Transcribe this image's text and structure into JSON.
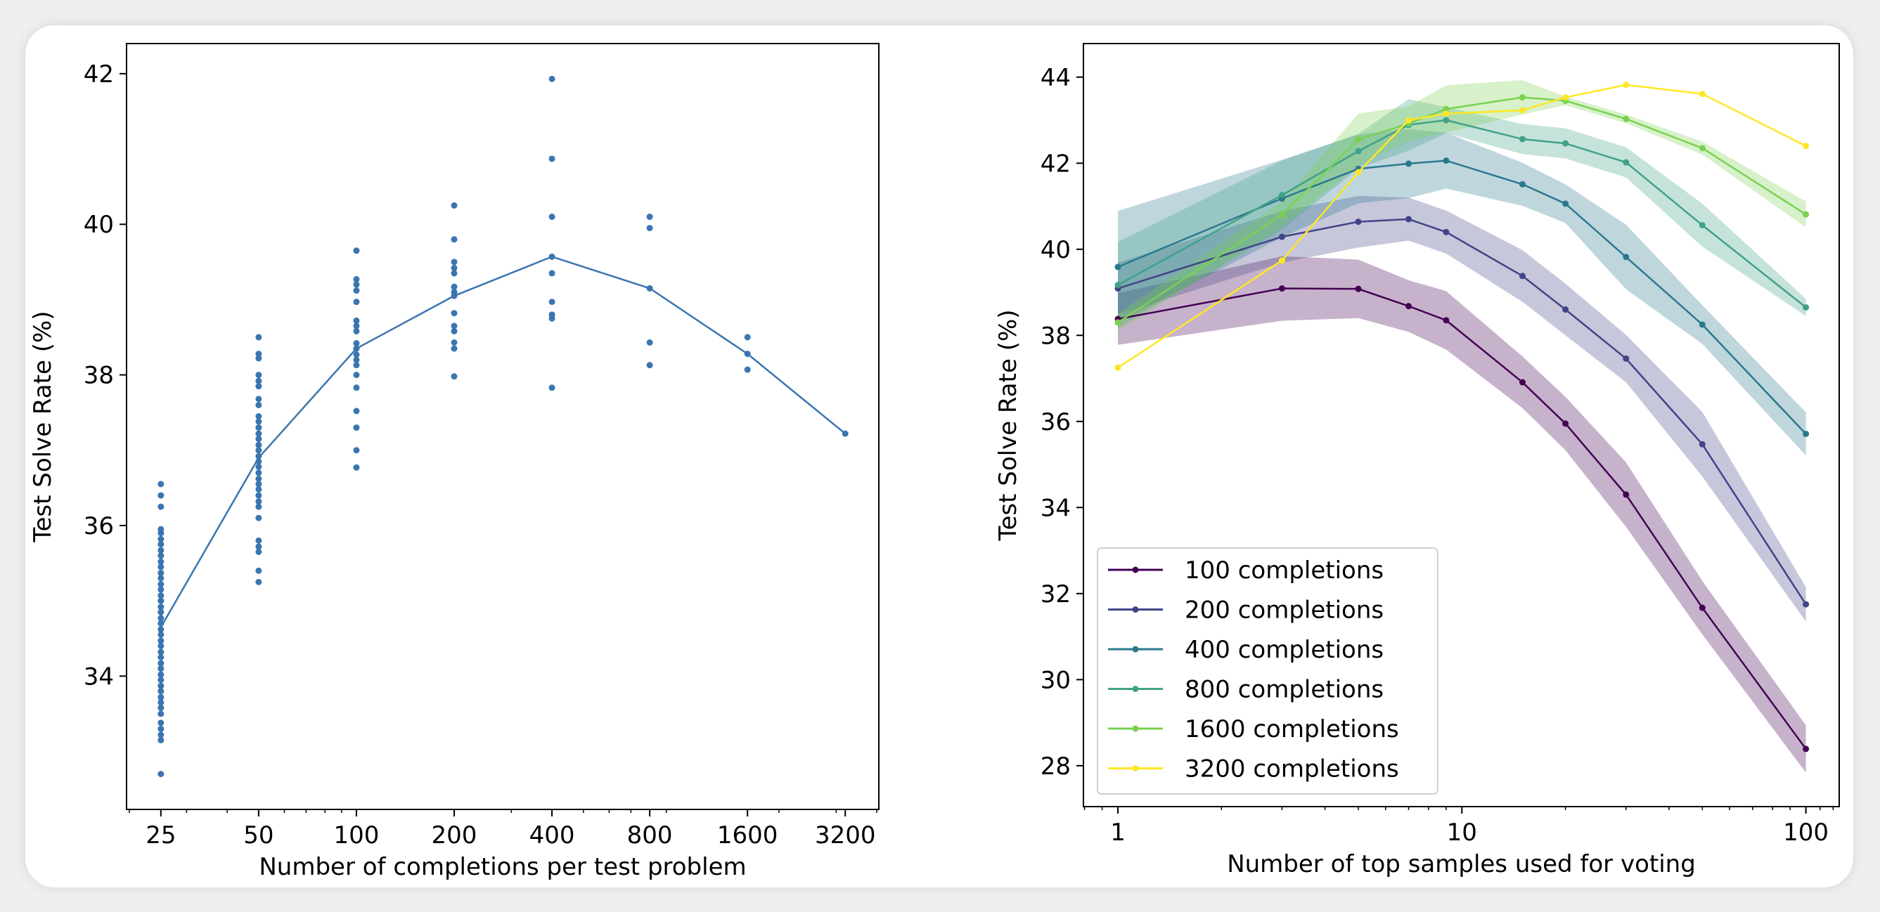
{
  "chart_data": [
    {
      "type": "scatter",
      "title": "",
      "xlabel": "Number of completions per test problem",
      "ylabel": "Test Solve Rate (%)",
      "xscale": "log2",
      "xlim": [
        19.6,
        4060
      ],
      "ylim": [
        32.23,
        42.4
      ],
      "xticks": [
        25,
        50,
        100,
        200,
        400,
        800,
        1600,
        3200
      ],
      "xtick_labels": [
        "25",
        "50",
        "100",
        "200",
        "400",
        "800",
        "1600",
        "3200"
      ],
      "yticks": [
        34,
        36,
        38,
        40,
        42
      ],
      "ytick_labels": [
        "34",
        "36",
        "38",
        "40",
        "42"
      ],
      "color": "#3a75b0",
      "points": {
        "25": [
          32.7,
          33.15,
          33.22,
          33.3,
          33.38,
          33.5,
          33.58,
          33.65,
          33.72,
          33.8,
          33.87,
          33.95,
          34.02,
          34.1,
          34.17,
          34.25,
          34.32,
          34.4,
          34.47,
          34.55,
          34.62,
          34.7,
          34.77,
          34.85,
          34.92,
          35.0,
          35.07,
          35.15,
          35.22,
          35.3,
          35.37,
          35.45,
          35.52,
          35.6,
          35.67,
          35.75,
          35.82,
          35.9,
          35.95,
          36.25,
          36.4,
          36.55
        ],
        "50": [
          35.25,
          35.4,
          35.65,
          35.72,
          35.8,
          36.1,
          36.25,
          36.32,
          36.4,
          36.48,
          36.55,
          36.62,
          36.7,
          36.78,
          36.85,
          36.92,
          37.0,
          37.07,
          37.15,
          37.22,
          37.3,
          37.38,
          37.45,
          37.6,
          37.68,
          37.85,
          37.92,
          38.0,
          38.22,
          38.28,
          38.5
        ],
        "100": [
          36.77,
          37.0,
          37.3,
          37.52,
          37.83,
          38.0,
          38.13,
          38.2,
          38.27,
          38.35,
          38.42,
          38.58,
          38.65,
          38.72,
          38.97,
          39.12,
          39.2,
          39.27,
          39.65
        ],
        "200": [
          37.98,
          38.35,
          38.43,
          38.58,
          38.65,
          38.82,
          39.05,
          39.1,
          39.17,
          39.35,
          39.42,
          39.5,
          39.8,
          40.25
        ],
        "400": [
          41.93,
          40.87,
          40.1,
          39.57,
          39.35,
          38.97,
          38.8,
          38.75,
          37.83
        ],
        "800": [
          40.1,
          39.95,
          39.15,
          38.43,
          38.13
        ],
        "1600": [
          38.5,
          38.28,
          38.07
        ],
        "3200": [
          37.22
        ]
      },
      "mean_line": {
        "x": [
          25,
          50,
          100,
          200,
          400,
          800,
          1600,
          3200
        ],
        "y": [
          34.65,
          36.9,
          38.35,
          39.05,
          39.57,
          39.15,
          38.28,
          37.22
        ]
      }
    },
    {
      "type": "line",
      "title": "",
      "xlabel": "Number of top samples used for voting",
      "ylabel": "Test Solve Rate (%)",
      "xscale": "log10",
      "xlim": [
        0.794,
        125
      ],
      "ylim": [
        27.05,
        44.78
      ],
      "xticks": [
        1,
        10,
        100
      ],
      "xtick_labels": [
        "1",
        "10",
        "100"
      ],
      "yticks": [
        28,
        30,
        32,
        34,
        36,
        38,
        40,
        42,
        44
      ],
      "ytick_labels": [
        "28",
        "30",
        "32",
        "34",
        "36",
        "38",
        "40",
        "42",
        "44"
      ],
      "legend_position": "lower-left",
      "x": [
        1,
        3,
        5,
        7,
        9,
        15,
        20,
        30,
        50,
        100
      ],
      "series": [
        {
          "name": "100 completions",
          "color": "#440154",
          "values": [
            38.38,
            39.09,
            39.08,
            38.68,
            38.35,
            36.91,
            35.95,
            34.3,
            31.67,
            28.39
          ],
          "band": [
            0.6,
            0.75,
            0.68,
            0.6,
            0.68,
            0.6,
            0.62,
            0.75,
            0.62,
            0.55
          ]
        },
        {
          "name": "200 completions",
          "color": "#414487",
          "values": [
            39.09,
            40.29,
            40.64,
            40.7,
            40.4,
            39.38,
            38.6,
            37.46,
            35.47,
            31.75
          ],
          "band": [
            0.6,
            0.6,
            0.6,
            0.5,
            0.5,
            0.6,
            0.6,
            0.55,
            0.75,
            0.4
          ]
        },
        {
          "name": "400 completions",
          "color": "#2a788e",
          "values": [
            39.59,
            41.18,
            41.87,
            41.99,
            42.06,
            41.51,
            41.06,
            39.82,
            38.25,
            35.71
          ],
          "band": [
            1.3,
            0.9,
            0.8,
            0.8,
            0.65,
            0.5,
            0.45,
            0.75,
            0.45,
            0.5
          ]
        },
        {
          "name": "800 completions",
          "color": "#3fa287",
          "values": [
            39.17,
            41.26,
            42.28,
            42.89,
            43.0,
            42.56,
            42.46,
            42.02,
            40.56,
            38.65
          ],
          "band": [
            1.0,
            0.8,
            0.4,
            0.6,
            0.3,
            0.35,
            0.35,
            0.35,
            0.5,
            0.2
          ]
        },
        {
          "name": "1600 completions",
          "color": "#7ad151",
          "values": [
            38.3,
            40.81,
            42.55,
            42.92,
            43.26,
            43.53,
            43.45,
            43.03,
            42.35,
            40.81
          ],
          "band": [
            0.2,
            0.3,
            0.6,
            0.4,
            0.55,
            0.4,
            0.1,
            0.1,
            0.15,
            0.3
          ]
        },
        {
          "name": "3200 completions",
          "color": "#fde725",
          "values": [
            37.25,
            39.74,
            41.79,
            43.0,
            43.15,
            43.23,
            43.53,
            43.82,
            43.61,
            42.4
          ],
          "band": null
        }
      ]
    }
  ]
}
